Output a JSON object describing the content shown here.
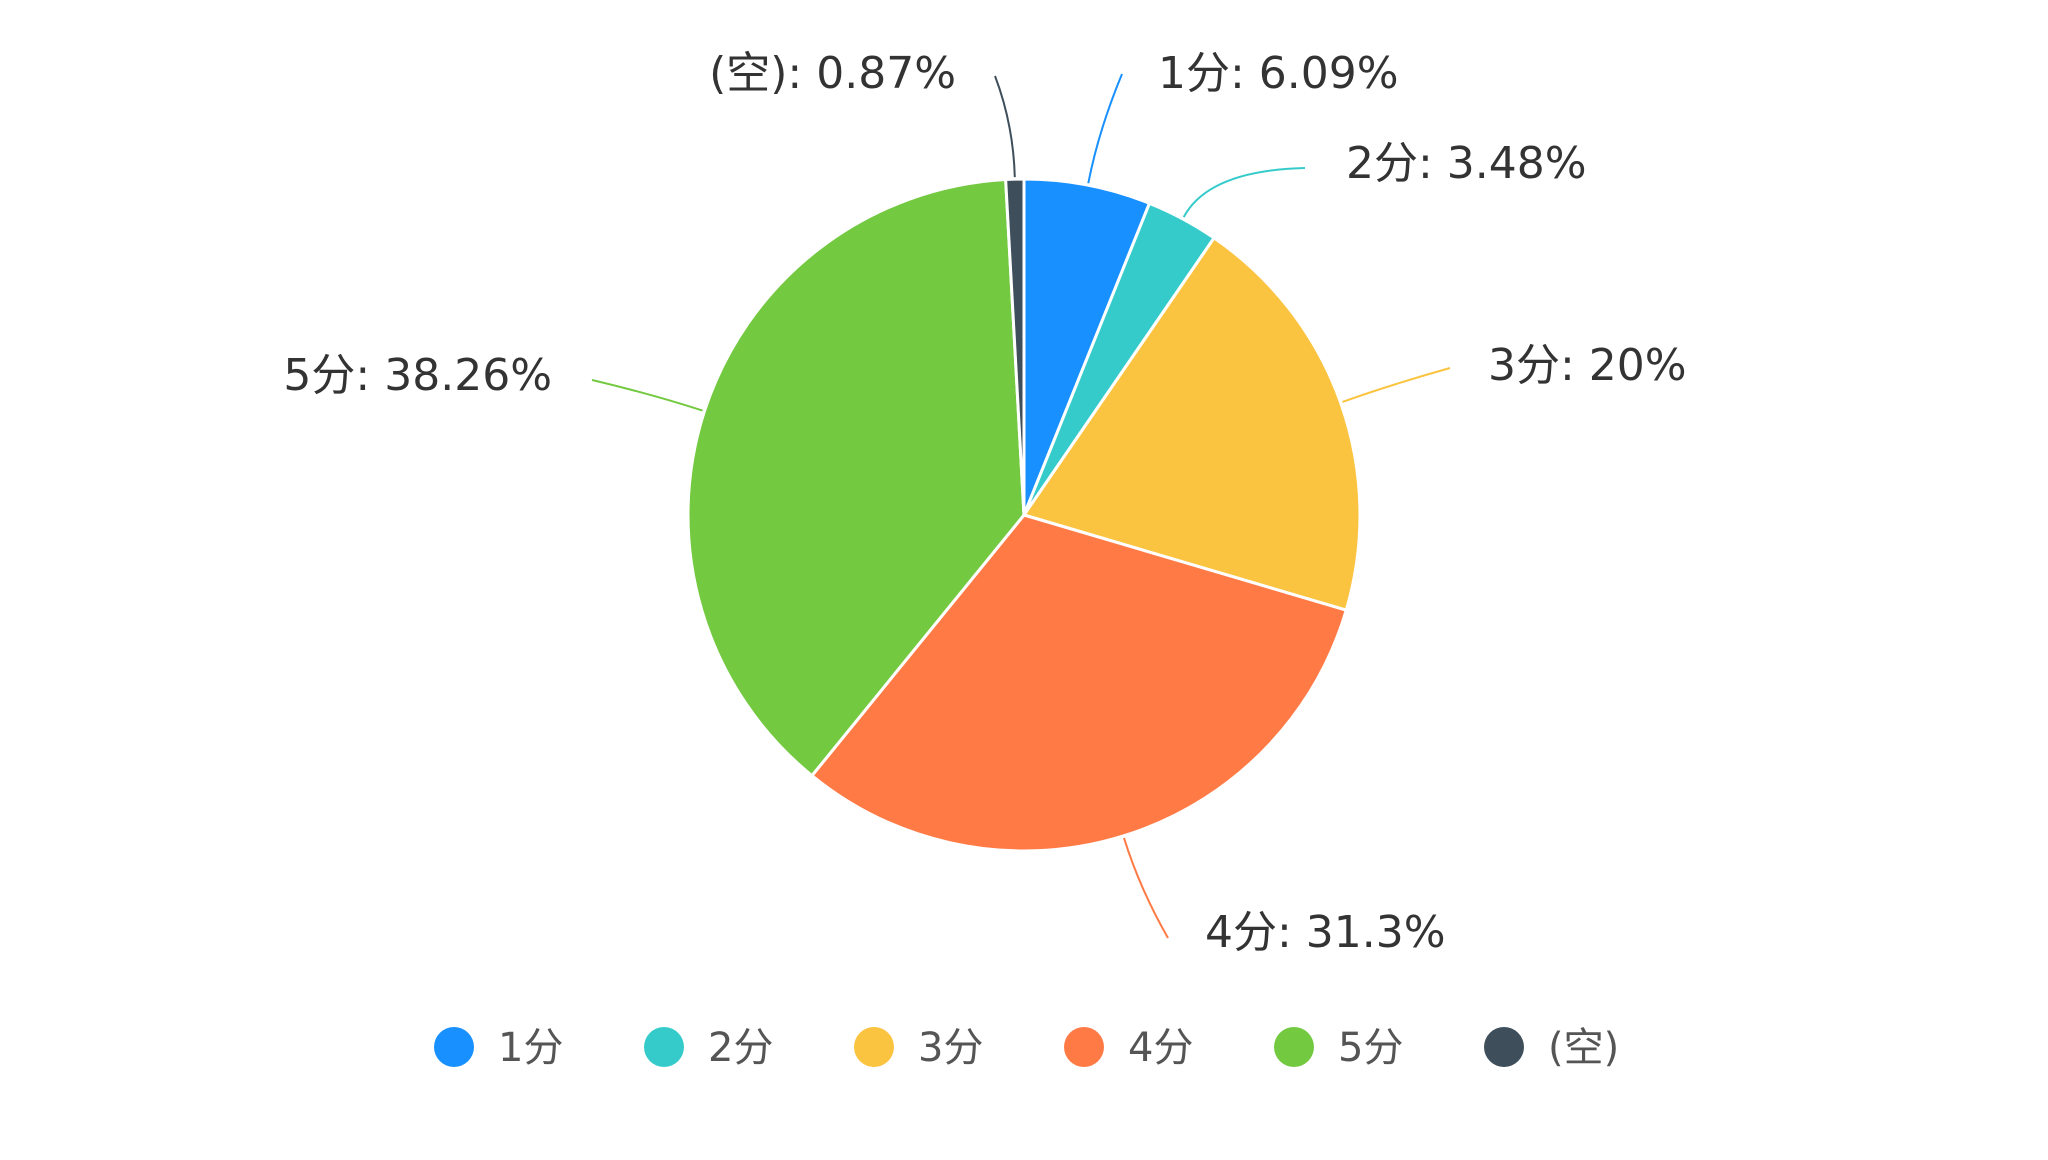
{
  "chart_data": {
    "type": "pie",
    "title": "",
    "slices": [
      {
        "name": "1分",
        "value": 6.09,
        "label": "1分: 6.09%",
        "color": "#1890FF"
      },
      {
        "name": "2分",
        "value": 3.48,
        "label": "2分: 3.48%",
        "color": "#36CBCB"
      },
      {
        "name": "3分",
        "value": 20,
        "label": "3分: 20%",
        "color": "#FBC440"
      },
      {
        "name": "4分",
        "value": 31.3,
        "label": "4分: 31.3%",
        "color": "#FF7A45"
      },
      {
        "name": "5分",
        "value": 38.26,
        "label": "5分: 38.26%",
        "color": "#73C940"
      },
      {
        "name": "(空)",
        "value": 0.87,
        "label": "(空): 0.87%",
        "color": "#3E4E5A"
      }
    ],
    "legend": {
      "placement": "bottom",
      "entries": [
        "1分",
        "2分",
        "3分",
        "4分",
        "5分",
        "(空)"
      ]
    },
    "start_angle_deg": 0,
    "direction": "clockwise"
  }
}
